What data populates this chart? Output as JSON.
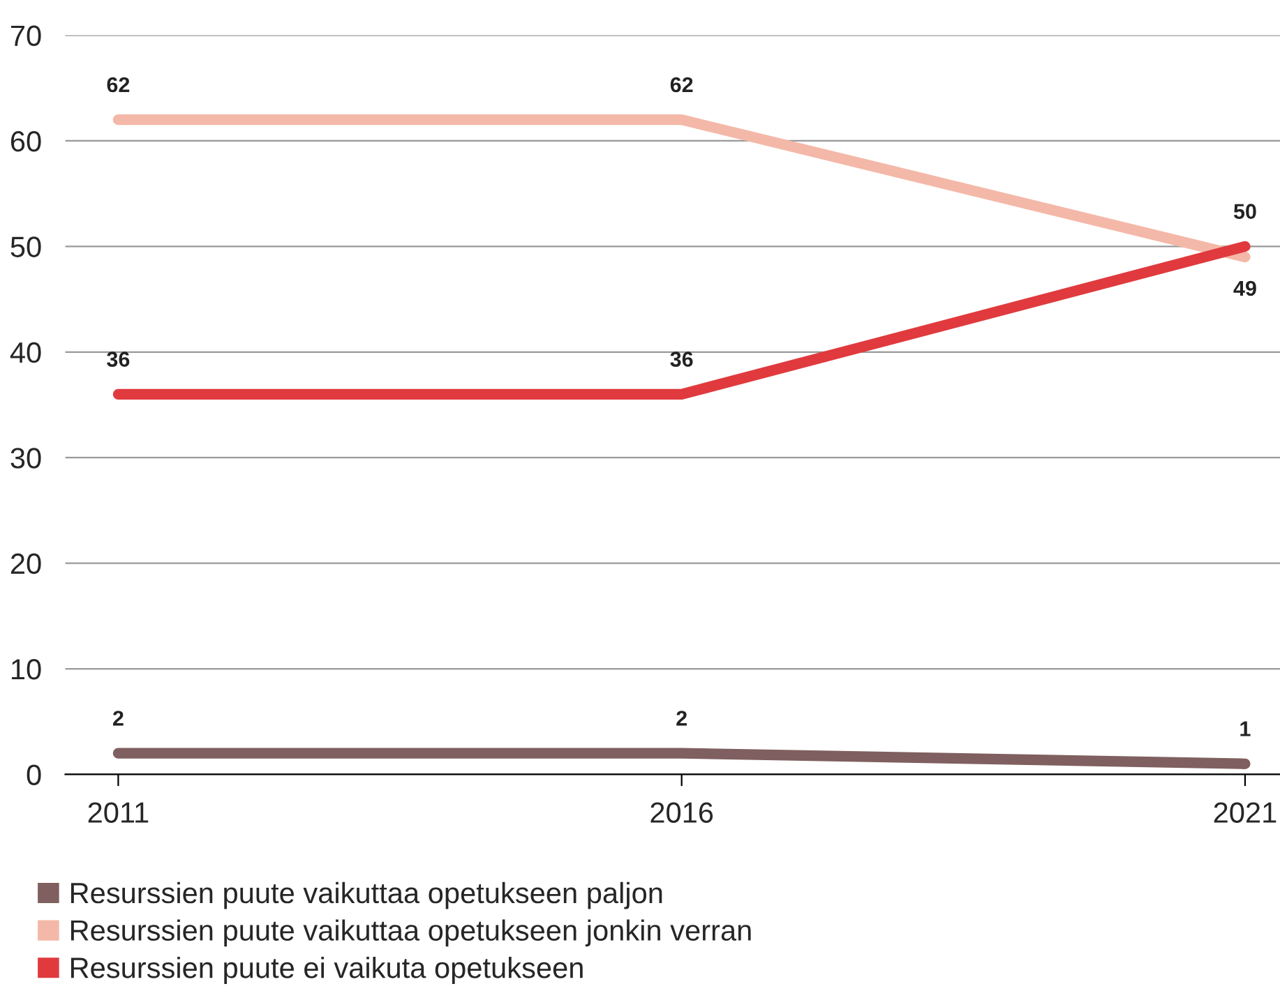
{
  "chart_data": {
    "type": "line",
    "categories": [
      "2011",
      "2016",
      "2021"
    ],
    "series": [
      {
        "name": "Resurssien puute vaikuttaa opetukseen paljon",
        "color": "#7f5f5f",
        "values": [
          2,
          2,
          1
        ]
      },
      {
        "name": "Resurssien puute vaikuttaa opetukseen jonkin verran",
        "color": "#f4b8a8",
        "values": [
          62,
          62,
          49
        ]
      },
      {
        "name": "Resurssien puute ei vaikuta opetukseen",
        "color": "#e03a3e",
        "values": [
          36,
          36,
          50
        ]
      }
    ],
    "ylim": [
      0,
      70
    ],
    "yticks": [
      0,
      10,
      20,
      30,
      40,
      50,
      60,
      70
    ],
    "grid": "y",
    "legend": "bottom",
    "data_labels": true,
    "marker": "none",
    "line_style": "solid"
  }
}
